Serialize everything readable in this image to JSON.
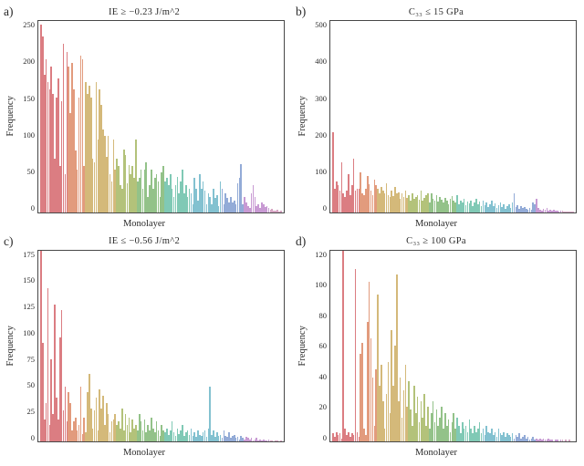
{
  "background_color": "#ffffff",
  "axis_color": "#484848",
  "text_color": "#2a2a2a",
  "font_family": "Georgia, Times New Roman, serif",
  "color_segments": [
    {
      "color": "#cf5258",
      "weight": 12
    },
    {
      "color": "#d87a52",
      "weight": 8
    },
    {
      "color": "#c6a24e",
      "weight": 14
    },
    {
      "color": "#9aad4e",
      "weight": 10
    },
    {
      "color": "#6fae62",
      "weight": 12
    },
    {
      "color": "#55b79c",
      "weight": 12
    },
    {
      "color": "#5aacc0",
      "weight": 14
    },
    {
      "color": "#6f8fc9",
      "weight": 10
    },
    {
      "color": "#b578c4",
      "weight": 12
    },
    {
      "color": "#c988b0",
      "weight": 6
    }
  ],
  "panels": {
    "a": {
      "label": "a)",
      "title": "IE  ≥  −0.23 J/m^2",
      "xlabel": "Monolayer",
      "ylabel": "Frequency",
      "ylim": [
        0,
        250
      ],
      "yticks": [
        0,
        50,
        100,
        150,
        200,
        250
      ],
      "num_bars": 140,
      "values": [
        245,
        230,
        180,
        200,
        170,
        160,
        190,
        155,
        70,
        150,
        175,
        60,
        145,
        220,
        50,
        210,
        190,
        130,
        195,
        160,
        80,
        55,
        150,
        205,
        200,
        60,
        170,
        155,
        165,
        150,
        70,
        65,
        170,
        95,
        160,
        140,
        108,
        100,
        72,
        100,
        50,
        40,
        95,
        55,
        70,
        60,
        35,
        30,
        82,
        75,
        38,
        62,
        50,
        60,
        45,
        95,
        40,
        45,
        55,
        30,
        55,
        65,
        20,
        35,
        55,
        30,
        45,
        50,
        40,
        20,
        52,
        60,
        40,
        45,
        35,
        50,
        30,
        20,
        35,
        46,
        25,
        40,
        55,
        25,
        35,
        20,
        30,
        25,
        10,
        45,
        30,
        15,
        50,
        30,
        40,
        28,
        10,
        25,
        20,
        10,
        30,
        18,
        22,
        8,
        40,
        30,
        10,
        25,
        18,
        12,
        20,
        12,
        15,
        10,
        38,
        45,
        63,
        10,
        20,
        12,
        8,
        5,
        25,
        35,
        20,
        8,
        10,
        5,
        12,
        10,
        6,
        8,
        5,
        3,
        4,
        2,
        2,
        3,
        1,
        2
      ],
      "tickband_density": 140,
      "xnoise": "⋯⋯⋯⋯⋯⋯⋯⋯⋯⋯⋯⋯⋯⋯⋯⋯⋯⋯⋯⋯⋯⋯⋯⋯⋯⋯⋯⋯⋯⋯⋯⋯⋯⋯⋯⋯⋯⋯⋯⋯⋯⋯⋯⋯⋯⋯⋯⋯⋯⋯⋯⋯⋯⋯⋯⋯⋯⋯⋯⋯"
    },
    "b": {
      "label": "b)",
      "title": "C₃₃  ≤  15 GPa",
      "xlabel": "Monolayer",
      "ylabel": "Frequency",
      "ylim": [
        0,
        500
      ],
      "yticks": [
        0,
        100,
        200,
        300,
        400,
        500
      ],
      "num_bars": 140,
      "values": [
        210,
        60,
        80,
        70,
        55,
        130,
        50,
        40,
        55,
        100,
        45,
        70,
        140,
        55,
        62,
        60,
        105,
        50,
        45,
        60,
        95,
        72,
        55,
        45,
        85,
        70,
        60,
        50,
        65,
        55,
        48,
        75,
        45,
        40,
        55,
        42,
        65,
        48,
        52,
        35,
        50,
        40,
        55,
        38,
        45,
        30,
        48,
        35,
        40,
        45,
        32,
        55,
        30,
        38,
        45,
        48,
        25,
        50,
        35,
        30,
        45,
        28,
        40,
        32,
        25,
        38,
        30,
        20,
        35,
        42,
        30,
        25,
        45,
        20,
        30,
        25,
        35,
        18,
        28,
        22,
        30,
        15,
        25,
        35,
        20,
        28,
        15,
        30,
        18,
        25,
        12,
        20,
        30,
        15,
        22,
        10,
        18,
        25,
        12,
        20,
        8,
        15,
        20,
        10,
        25,
        48,
        12,
        18,
        8,
        15,
        10,
        12,
        8,
        5,
        10,
        6,
        25,
        20,
        35,
        10,
        6,
        4,
        8,
        5,
        10,
        4,
        6,
        3,
        5,
        4,
        3,
        2,
        4,
        3,
        2,
        1,
        2,
        1,
        1,
        1
      ],
      "tickband_density": 140,
      "xnoise": "⋯⋯⋯⋯⋯⋯⋯⋯⋯⋯⋯⋯⋯⋯⋯⋯⋯⋯⋯⋯⋯⋯⋯⋯⋯⋯⋯⋯⋯⋯⋯⋯⋯⋯⋯⋯⋯⋯⋯⋯⋯⋯⋯⋯⋯⋯⋯⋯⋯⋯⋯⋯⋯⋯⋯⋯⋯⋯⋯⋯"
    },
    "c": {
      "label": "c)",
      "title": "IE  ≤  −0.56 J/m^2",
      "xlabel": "Monolayer",
      "ylabel": "Frequency",
      "ylim": [
        0,
        175
      ],
      "yticks": [
        0,
        25,
        50,
        75,
        100,
        125,
        150,
        175
      ],
      "num_bars": 140,
      "values": [
        175,
        90,
        20,
        35,
        140,
        15,
        75,
        25,
        125,
        40,
        20,
        95,
        120,
        28,
        50,
        18,
        45,
        35,
        10,
        18,
        22,
        10,
        15,
        50,
        7,
        22,
        8,
        45,
        62,
        30,
        12,
        28,
        40,
        10,
        48,
        30,
        42,
        15,
        35,
        25,
        8,
        18,
        20,
        25,
        15,
        18,
        12,
        30,
        10,
        25,
        15,
        22,
        8,
        20,
        12,
        15,
        10,
        25,
        18,
        10,
        20,
        8,
        15,
        10,
        22,
        12,
        8,
        18,
        10,
        5,
        15,
        10,
        8,
        12,
        6,
        10,
        18,
        8,
        5,
        12,
        7,
        10,
        15,
        5,
        8,
        10,
        6,
        12,
        5,
        8,
        4,
        10,
        6,
        5,
        8,
        10,
        4,
        12,
        50,
        6,
        10,
        4,
        8,
        5,
        6,
        3,
        10,
        5,
        4,
        8,
        3,
        5,
        6,
        3,
        4,
        2,
        5,
        3,
        2,
        4,
        3,
        2,
        3,
        1,
        2,
        3,
        1,
        2,
        1,
        2,
        1,
        1,
        2,
        1,
        1,
        0,
        1,
        1,
        0,
        1
      ],
      "tickband_density": 140,
      "xnoise": "⋯⋯⋯⋯⋯⋯⋯⋯⋯⋯⋯⋯⋯⋯⋯⋯⋯⋯⋯⋯⋯⋯⋯⋯⋯⋯⋯⋯⋯⋯⋯⋯⋯⋯⋯⋯⋯⋯⋯⋯⋯⋯⋯⋯⋯⋯⋯⋯⋯⋯⋯⋯⋯⋯⋯⋯⋯⋯⋯⋯"
    },
    "d": {
      "label": "d)",
      "title": "C₃₃  ≥  100 GPa",
      "xlabel": "Monolayer",
      "ylabel": "Frequency",
      "ylim": [
        0,
        120
      ],
      "yticks": [
        0,
        20,
        40,
        60,
        80,
        100,
        120
      ],
      "num_bars": 140,
      "values": [
        5,
        3,
        6,
        4,
        5,
        2,
        126,
        8,
        4,
        6,
        3,
        5,
        4,
        108,
        6,
        3,
        55,
        62,
        8,
        4,
        75,
        100,
        65,
        40,
        10,
        45,
        92,
        35,
        48,
        25,
        8,
        30,
        50,
        18,
        70,
        35,
        60,
        105,
        25,
        40,
        15,
        32,
        48,
        22,
        38,
        20,
        10,
        35,
        18,
        28,
        12,
        25,
        15,
        30,
        10,
        22,
        8,
        18,
        25,
        12,
        20,
        10,
        15,
        22,
        8,
        18,
        10,
        14,
        6,
        12,
        18,
        8,
        15,
        10,
        5,
        12,
        8,
        10,
        6,
        14,
        8,
        5,
        10,
        6,
        8,
        12,
        5,
        8,
        4,
        10,
        6,
        5,
        8,
        4,
        6,
        3,
        8,
        5,
        4,
        6,
        3,
        5,
        4,
        3,
        5,
        2,
        4,
        3,
        5,
        2,
        3,
        4,
        2,
        3,
        1,
        2,
        3,
        1,
        2,
        1,
        2,
        1,
        2,
        1,
        1,
        2,
        1,
        1,
        0,
        1,
        1,
        0,
        1,
        1,
        0,
        1,
        0,
        1,
        0,
        0
      ],
      "tickband_density": 140,
      "xnoise": "⋯⋯⋯⋯⋯⋯⋯⋯⋯⋯⋯⋯⋯⋯⋯⋯⋯⋯⋯⋯⋯⋯⋯⋯⋯⋯⋯⋯⋯⋯⋯⋯⋯⋯⋯⋯⋯⋯⋯⋯⋯⋯⋯⋯⋯⋯⋯⋯⋯⋯⋯⋯⋯⋯⋯⋯⋯⋯⋯⋯"
    }
  }
}
